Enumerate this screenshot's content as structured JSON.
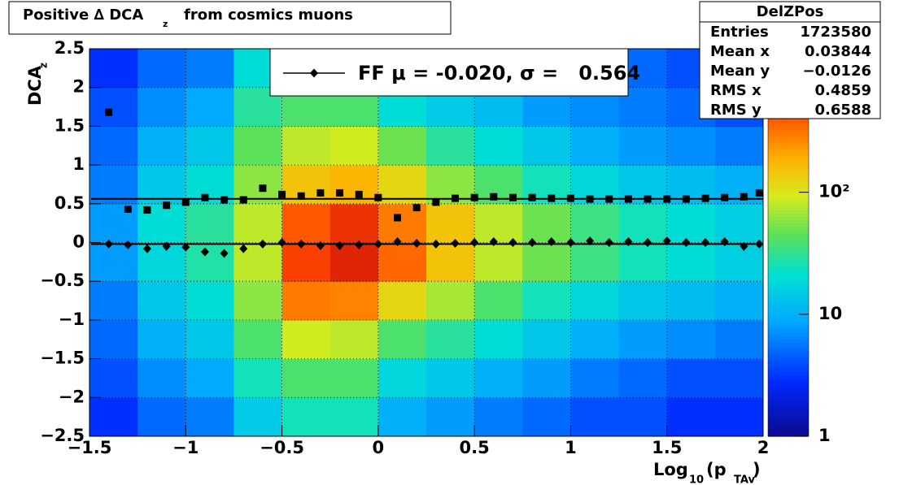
{
  "chart_data": {
    "type": "heatmap",
    "title": "Positive ∆ DCA",
    "title_sub": "z",
    "title_rest": "from cosmics muons",
    "y_label": "DCA",
    "y_label_sub": "z",
    "x_label": "Log",
    "x_label_sub": "10",
    "x_label_mid": "(p",
    "x_label_sub2": "TAv",
    "x_label_end": ")",
    "xlim": [
      -1.5,
      2
    ],
    "ylim": [
      -2.5,
      2.5
    ],
    "xticks": [
      {
        "value": -1.5,
        "label": "−1.5"
      },
      {
        "value": -1,
        "label": "−1"
      },
      {
        "value": -0.5,
        "label": "−0.5"
      },
      0,
      0.5,
      1,
      1.5,
      2
    ],
    "yticks": [
      {
        "value": -2.5,
        "label": "−2.5"
      },
      {
        "value": -2,
        "label": "−2"
      },
      {
        "value": -1.5,
        "label": "−1.5"
      },
      {
        "value": -1,
        "label": "−1"
      },
      {
        "value": -0.5,
        "label": "−0.5"
      },
      0,
      0.5,
      1,
      1.5,
      2,
      2.5
    ],
    "grid": true,
    "colormap": "jet",
    "zlim": [
      1,
      1500
    ],
    "zscale": "log",
    "zticks": [
      1,
      10,
      {
        "value": 100,
        "label": "10²"
      }
    ],
    "xbins": [
      -1.5,
      -1.25,
      -1,
      -0.75,
      -0.5,
      -0.25,
      0,
      0.25,
      0.5,
      0.75,
      1,
      1.25,
      1.5,
      1.75,
      2
    ],
    "ybins": [
      -2.5,
      -2,
      -1.5,
      -1,
      -0.5,
      0,
      0.5,
      1,
      1.5,
      2,
      2.5
    ],
    "z": [
      [
        3,
        5,
        6,
        15,
        25,
        25,
        10,
        8,
        6,
        5,
        4,
        4,
        3,
        3
      ],
      [
        4,
        7,
        9,
        25,
        40,
        40,
        18,
        14,
        10,
        8,
        6,
        5,
        4,
        4
      ],
      [
        5,
        10,
        14,
        40,
        90,
        80,
        40,
        30,
        20,
        14,
        10,
        8,
        7,
        6
      ],
      [
        6,
        14,
        20,
        60,
        300,
        280,
        120,
        70,
        40,
        25,
        18,
        14,
        12,
        10
      ],
      [
        8,
        18,
        28,
        80,
        500,
        700,
        350,
        150,
        80,
        50,
        35,
        25,
        20,
        16
      ],
      [
        8,
        20,
        30,
        80,
        400,
        600,
        300,
        150,
        80,
        50,
        35,
        25,
        20,
        16
      ],
      [
        6,
        14,
        20,
        60,
        150,
        180,
        120,
        60,
        40,
        25,
        18,
        14,
        12,
        10
      ],
      [
        5,
        10,
        14,
        45,
        80,
        90,
        50,
        30,
        20,
        14,
        10,
        8,
        7,
        6
      ],
      [
        4,
        7,
        9,
        30,
        40,
        40,
        20,
        15,
        12,
        8,
        7,
        6,
        5,
        4
      ],
      [
        3,
        5,
        6,
        20,
        25,
        20,
        12,
        10,
        8,
        6,
        5,
        5,
        4,
        3
      ]
    ],
    "x": [
      -1.4,
      -1.3,
      -1.2,
      -1.1,
      -1.0,
      -0.9,
      -0.8,
      -0.7,
      -0.6,
      -0.5,
      -0.4,
      -0.3,
      -0.2,
      -0.1,
      0.0,
      0.1,
      0.2,
      0.3,
      0.4,
      0.5,
      0.6,
      0.7,
      0.8,
      0.9,
      1.0,
      1.1,
      1.2,
      1.3,
      1.4,
      1.5,
      1.6,
      1.7,
      1.8,
      1.9,
      1.98
    ],
    "series": [
      {
        "marker": "square",
        "color": "#000000",
        "values": [
          1.68,
          0.43,
          0.42,
          0.48,
          0.52,
          0.58,
          0.55,
          0.55,
          0.7,
          0.62,
          0.6,
          0.64,
          0.64,
          0.62,
          0.58,
          0.32,
          0.45,
          0.52,
          0.57,
          0.58,
          0.59,
          0.58,
          0.58,
          0.57,
          0.57,
          0.56,
          0.56,
          0.56,
          0.56,
          0.56,
          0.56,
          0.57,
          0.58,
          0.59,
          0.64
        ]
      },
      {
        "marker": "diamond",
        "color": "#000000",
        "values": [
          -0.02,
          -0.03,
          -0.08,
          -0.05,
          -0.06,
          -0.12,
          -0.14,
          -0.08,
          -0.02,
          0.0,
          -0.02,
          -0.04,
          -0.04,
          -0.03,
          -0.02,
          0.01,
          -0.01,
          -0.02,
          -0.01,
          0.0,
          0.01,
          0.0,
          0.0,
          0.01,
          0.0,
          0.02,
          0.0,
          0.01,
          0.0,
          0.02,
          0.0,
          0.0,
          0.01,
          -0.05,
          -0.02
        ]
      }
    ],
    "fit_lines": [
      -0.02,
      0.564
    ],
    "legend_label": "FF μ = -0.020, σ =   0.564",
    "stats": {
      "title": "DelZPos",
      "rows": [
        [
          "Entries",
          "1723580"
        ],
        [
          "Mean x",
          "0.03844"
        ],
        [
          "Mean y",
          "−0.0126"
        ],
        [
          "RMS x",
          "0.4859"
        ],
        [
          "RMS y",
          "0.6588"
        ]
      ]
    }
  }
}
